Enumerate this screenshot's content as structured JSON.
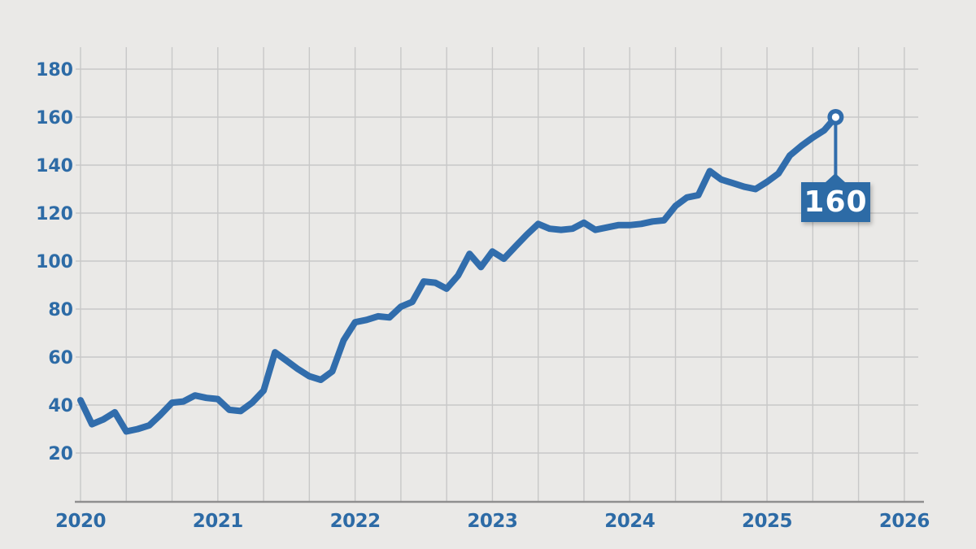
{
  "chart_data": {
    "type": "line",
    "title": "",
    "xlabel": "",
    "ylabel": "",
    "x_start": "2020-01",
    "x_interval": "monthly",
    "values": [
      42,
      32,
      34,
      37,
      29,
      30,
      31.5,
      36,
      41,
      41.5,
      44,
      43,
      42.5,
      38,
      37.5,
      41,
      46,
      62,
      58.5,
      55,
      52,
      50.5,
      54,
      67,
      74.5,
      75.5,
      77,
      76.5,
      81,
      83,
      91.5,
      91,
      88.5,
      94,
      103,
      97.5,
      104,
      101,
      106,
      111,
      115.5,
      113.5,
      113,
      113.5,
      116,
      113,
      114,
      115,
      115,
      115.5,
      116.5,
      117,
      123,
      126.5,
      127.5,
      137.5,
      134,
      132.5,
      131,
      130,
      133,
      136.5,
      144,
      148,
      151.5,
      154.5,
      160
    ],
    "x_tick_labels": [
      "2020",
      "2021",
      "2022",
      "2023",
      "2024",
      "2025",
      "2026"
    ],
    "y_ticks": [
      20,
      40,
      60,
      80,
      100,
      120,
      140,
      160,
      180
    ],
    "ylim": [
      0,
      189
    ],
    "grid": "on",
    "legend": "none",
    "annotation": {
      "label": "160",
      "value": 160,
      "x": "2025-07"
    },
    "colors": {
      "background": "#eae9e7",
      "gridline": "#c8c8c8",
      "axis_line": "#8f8f8f",
      "series_line": "#316dac",
      "tick_label": "#2d6ba6",
      "annotation_background": "#2d6ba6",
      "annotation_text": "#ffffff",
      "marker_fill": "#ffffff",
      "marker_ring": "#316dac"
    }
  }
}
